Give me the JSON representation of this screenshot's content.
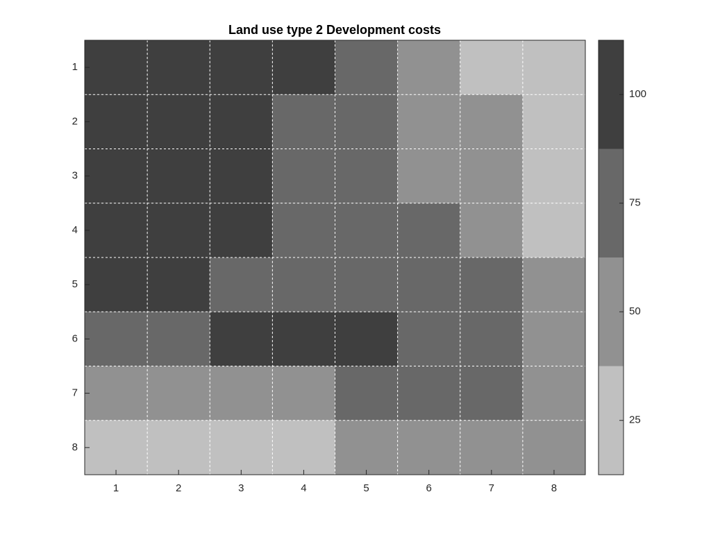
{
  "chart_data": {
    "type": "heatmap",
    "title": "Land use type 2 Development costs",
    "x_categories": [
      "1",
      "2",
      "3",
      "4",
      "5",
      "6",
      "7",
      "8"
    ],
    "y_categories": [
      "1",
      "2",
      "3",
      "4",
      "5",
      "6",
      "7",
      "8"
    ],
    "values": [
      [
        100,
        100,
        100,
        100,
        75,
        50,
        25,
        25
      ],
      [
        100,
        100,
        100,
        75,
        75,
        50,
        50,
        25
      ],
      [
        100,
        100,
        100,
        75,
        75,
        50,
        50,
        25
      ],
      [
        100,
        100,
        100,
        75,
        75,
        75,
        50,
        25
      ],
      [
        100,
        100,
        75,
        75,
        75,
        75,
        75,
        50
      ],
      [
        75,
        75,
        100,
        100,
        100,
        75,
        75,
        50
      ],
      [
        50,
        50,
        50,
        50,
        75,
        75,
        75,
        50
      ],
      [
        25,
        25,
        25,
        25,
        50,
        50,
        50,
        50
      ]
    ],
    "colormap": [
      "#c0c0c0",
      "#919191",
      "#686868",
      "#3f3f3f"
    ],
    "clim": [
      12.5,
      112.5
    ],
    "cticks": [
      25,
      50,
      75,
      100
    ],
    "grid": true
  }
}
